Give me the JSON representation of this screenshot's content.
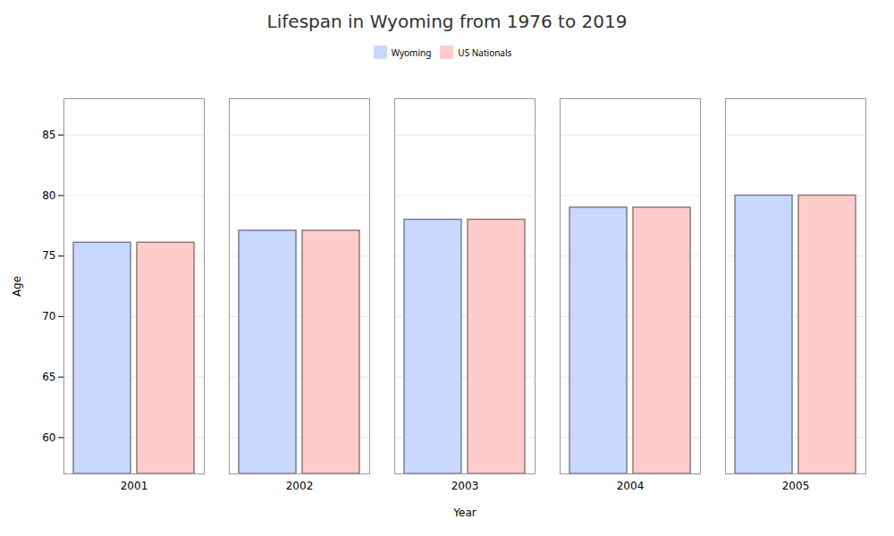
{
  "chart_data": {
    "type": "bar",
    "title": "Lifespan in Wyoming from 1976 to 2019",
    "xlabel": "Year",
    "ylabel": "Age",
    "categories": [
      "2001",
      "2002",
      "2003",
      "2004",
      "2005"
    ],
    "series": [
      {
        "name": "Wyoming",
        "color": "#c8d8ff",
        "values": [
          76.1,
          77.1,
          78.0,
          79.0,
          80.0
        ]
      },
      {
        "name": "US Nationals",
        "color": "#ffcccc",
        "values": [
          76.1,
          77.1,
          78.0,
          79.0,
          80.0
        ]
      }
    ],
    "ylim": [
      57,
      88
    ],
    "yticks": [
      60,
      65,
      70,
      75,
      80,
      85
    ],
    "grid": true,
    "legend": "top"
  }
}
